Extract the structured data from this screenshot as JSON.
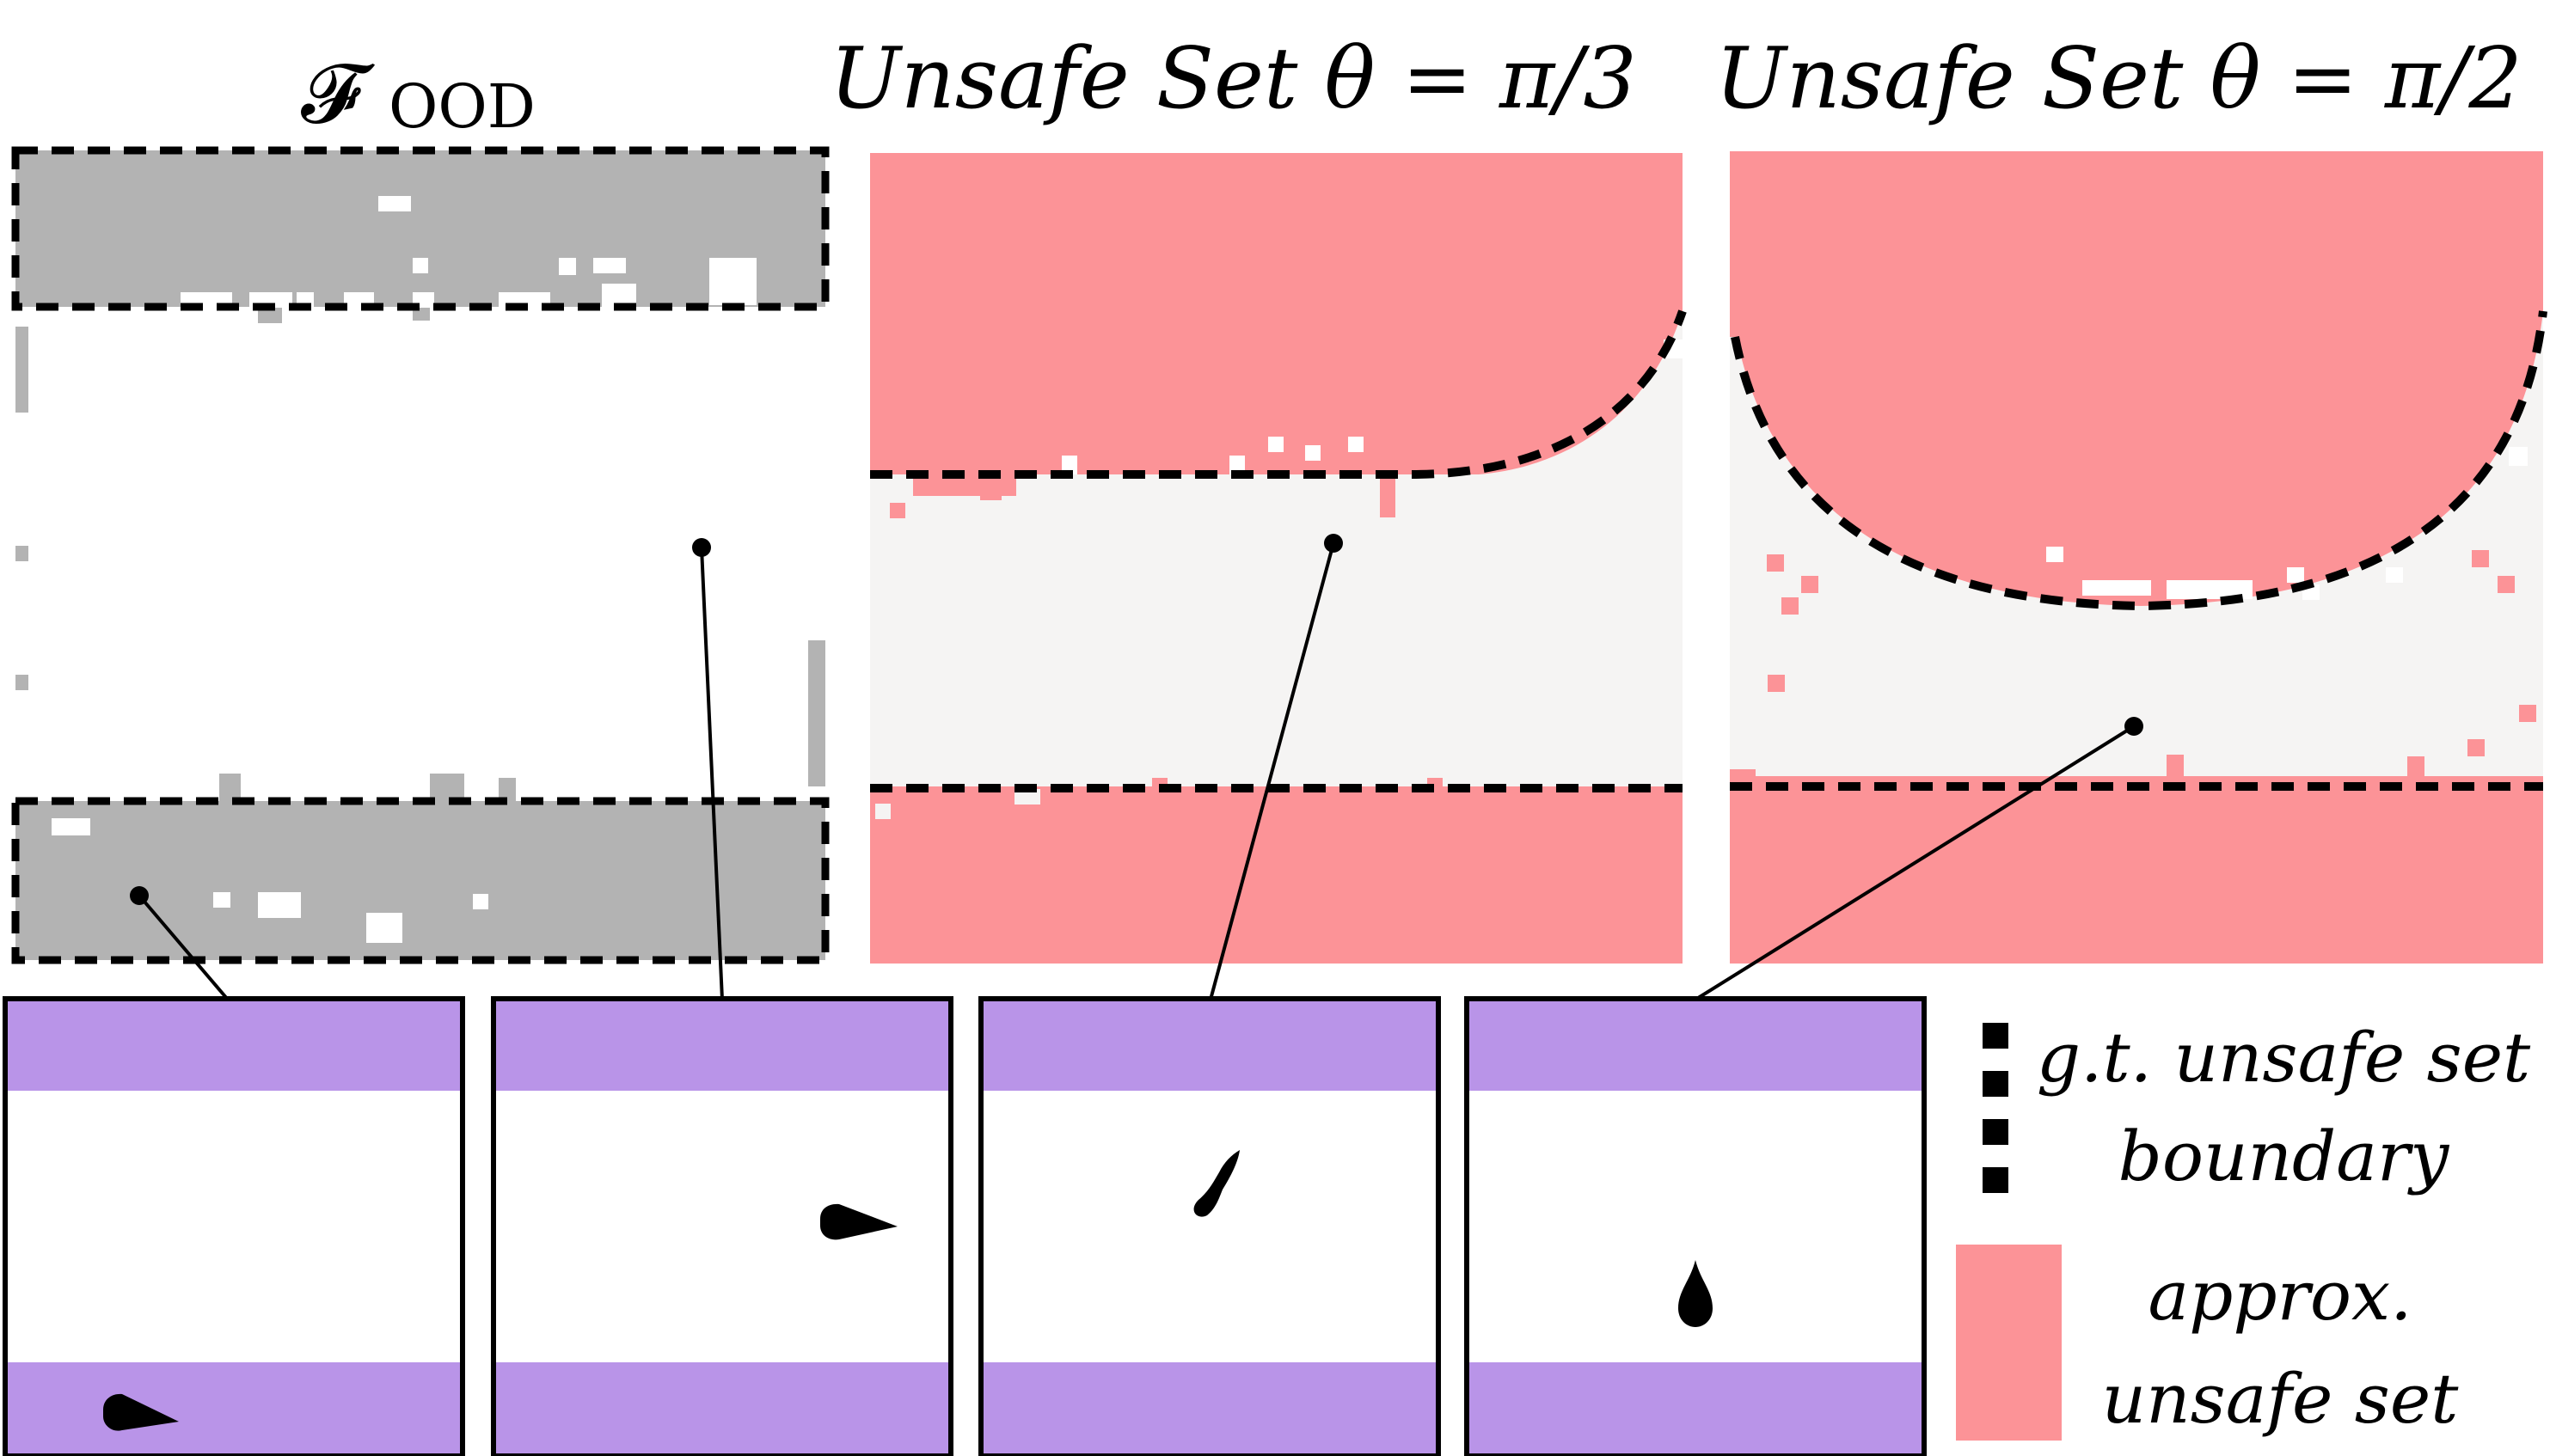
{
  "titles": {
    "ood": {
      "main": "𝓕",
      "sub": "OOD"
    },
    "unsafe_pi3": "Unsafe Set  θ = π/3",
    "unsafe_pi2": "Unsafe Set  θ = π/2"
  },
  "legend": {
    "gt_line1": "g.t. unsafe set",
    "gt_line2": "boundary",
    "approx_line1": "approx.",
    "approx_line2": "unsafe set"
  },
  "colors": {
    "ood_region": "#b3b3b3",
    "unsafe_region": "#fc9397",
    "safe_region": "#f5f4f3",
    "purple_band": "#b994e8",
    "agent": "#000000",
    "boundary": "#000000"
  },
  "observations": [
    {
      "id": "obs-1",
      "agent_direction": "right"
    },
    {
      "id": "obs-2",
      "agent_direction": "right"
    },
    {
      "id": "obs-3",
      "agent_direction": "up-right"
    },
    {
      "id": "obs-4",
      "agent_direction": "up"
    }
  ]
}
